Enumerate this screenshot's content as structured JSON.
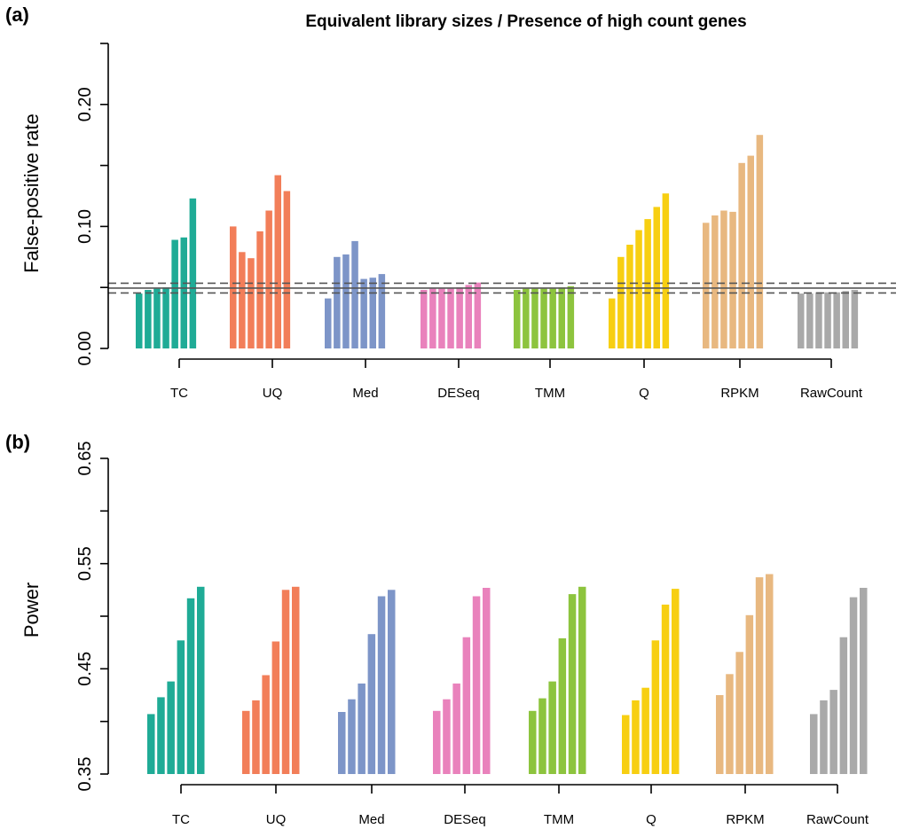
{
  "chart_data": [
    {
      "panel_label": "(a)",
      "type": "bar",
      "title": "Equivalent library sizes / Presence of high count genes",
      "ylabel": "False-positive rate",
      "xlabel": "",
      "ylim": [
        0,
        0.25
      ],
      "yticks": [
        "0.00",
        "0.10",
        "0.20"
      ],
      "ytick_values": [
        0,
        0.05,
        0.1,
        0.15,
        0.2,
        0.25
      ],
      "ytick_labeled": [
        true,
        false,
        true,
        false,
        true,
        false
      ],
      "reference_lines": [
        {
          "value": 0.0495,
          "style": "solid"
        },
        {
          "value": 0.0535,
          "style": "dashed"
        },
        {
          "value": 0.0455,
          "style": "dashed"
        }
      ],
      "groups": [
        {
          "name": "TC",
          "color": "#1FAB96",
          "values": [
            0.045,
            0.048,
            0.049,
            0.05,
            0.089,
            0.091,
            0.123
          ]
        },
        {
          "name": "UQ",
          "color": "#F27E59",
          "values": [
            0.1,
            0.079,
            0.074,
            0.096,
            0.113,
            0.142,
            0.129
          ]
        },
        {
          "name": "Med",
          "color": "#7D95C8",
          "values": [
            0.041,
            0.075,
            0.077,
            0.088,
            0.057,
            0.058,
            0.061
          ]
        },
        {
          "name": "DESeq",
          "color": "#E982BC",
          "values": [
            0.048,
            0.049,
            0.049,
            0.049,
            0.05,
            0.052,
            0.054
          ]
        },
        {
          "name": "TMM",
          "color": "#8DC43E",
          "values": [
            0.048,
            0.049,
            0.049,
            0.049,
            0.049,
            0.05,
            0.051
          ]
        },
        {
          "name": "Q",
          "color": "#F7CF12",
          "values": [
            0.041,
            0.075,
            0.085,
            0.097,
            0.106,
            0.116,
            0.127
          ]
        },
        {
          "name": "RPKM",
          "color": "#E8B880",
          "values": [
            0.103,
            0.109,
            0.113,
            0.112,
            0.152,
            0.158,
            0.175
          ]
        },
        {
          "name": "RawCount",
          "color": "#A9A9A9",
          "values": [
            0.045,
            0.045,
            0.046,
            0.046,
            0.046,
            0.047,
            0.048
          ]
        }
      ]
    },
    {
      "panel_label": "(b)",
      "type": "bar",
      "title": "",
      "ylabel": "Power",
      "xlabel": "",
      "ylim": [
        0.35,
        0.65
      ],
      "yticks": [
        "0.35",
        "0.45",
        "0.55",
        "0.65"
      ],
      "ytick_values": [
        0.35,
        0.4,
        0.45,
        0.5,
        0.55,
        0.6,
        0.65
      ],
      "ytick_labeled": [
        true,
        false,
        true,
        false,
        true,
        false,
        true
      ],
      "groups": [
        {
          "name": "TC",
          "color": "#1FAB96",
          "values": [
            0.407,
            0.423,
            0.438,
            0.477,
            0.517,
            0.528
          ]
        },
        {
          "name": "UQ",
          "color": "#F27E59",
          "values": [
            0.41,
            0.42,
            0.444,
            0.476,
            0.525,
            0.528
          ]
        },
        {
          "name": "Med",
          "color": "#7D95C8",
          "values": [
            0.409,
            0.421,
            0.436,
            0.483,
            0.519,
            0.525
          ]
        },
        {
          "name": "DESeq",
          "color": "#E982BC",
          "values": [
            0.41,
            0.421,
            0.436,
            0.48,
            0.519,
            0.527
          ]
        },
        {
          "name": "TMM",
          "color": "#8DC43E",
          "values": [
            0.41,
            0.422,
            0.438,
            0.479,
            0.521,
            0.528
          ]
        },
        {
          "name": "Q",
          "color": "#F7CF12",
          "values": [
            0.406,
            0.42,
            0.432,
            0.477,
            0.511,
            0.526
          ]
        },
        {
          "name": "RPKM",
          "color": "#E8B880",
          "values": [
            0.425,
            0.445,
            0.466,
            0.501,
            0.537,
            0.54
          ]
        },
        {
          "name": "RawCount",
          "color": "#A9A9A9",
          "values": [
            0.407,
            0.42,
            0.43,
            0.48,
            0.518,
            0.527
          ]
        }
      ]
    }
  ]
}
